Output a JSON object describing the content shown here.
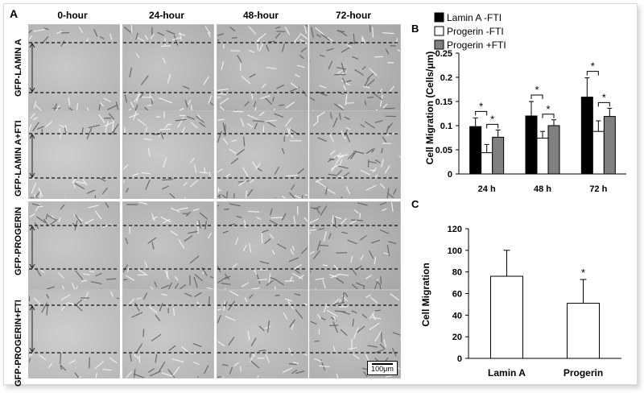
{
  "panel_a": {
    "letter": "A",
    "time_points": [
      "0-hour",
      "24-hour",
      "48-hour",
      "72-hour"
    ],
    "conditions": [
      "GFP-LAMIN A",
      "GFP-LAMIN A+FTI",
      "GFP-PROGERIN",
      "GFP-PROGERIN+FTI"
    ],
    "scale_bar": "100μm"
  },
  "chart_data": [
    {
      "panel": "B",
      "type": "bar",
      "ylabel": "Cell Migration (Cells/μm)",
      "ylim": [
        0,
        0.25
      ],
      "yticks": [
        "0",
        "0.05",
        "0.1",
        "0.15",
        "0.2",
        "0.25"
      ],
      "categories": [
        "24 h",
        "48 h",
        "72 h"
      ],
      "legend_position": "top",
      "series": [
        {
          "name": "Lamin A -FTI",
          "color": "#000000",
          "values": [
            0.098,
            0.12,
            0.159
          ],
          "errors": [
            0.018,
            0.03,
            0.04
          ]
        },
        {
          "name": "Progerin -FTI",
          "color": "#ffffff",
          "values": [
            0.044,
            0.074,
            0.088
          ],
          "errors": [
            0.017,
            0.014,
            0.022
          ]
        },
        {
          "name": "Progerin +FTI",
          "color": "#808080",
          "values": [
            0.076,
            0.1,
            0.119
          ],
          "errors": [
            0.015,
            0.012,
            0.017
          ]
        }
      ],
      "significance_marker": "*"
    },
    {
      "panel": "C",
      "type": "bar",
      "ylabel": "Cell  Migration",
      "ylim": [
        0,
        120
      ],
      "yticks": [
        "0",
        "20",
        "40",
        "60",
        "80",
        "100",
        "120"
      ],
      "categories": [
        "Lamin A",
        "Progerin"
      ],
      "series": [
        {
          "color": "#ffffff",
          "values": [
            76,
            51
          ],
          "errors": [
            24,
            22
          ]
        }
      ],
      "significance_marker": "*"
    }
  ]
}
